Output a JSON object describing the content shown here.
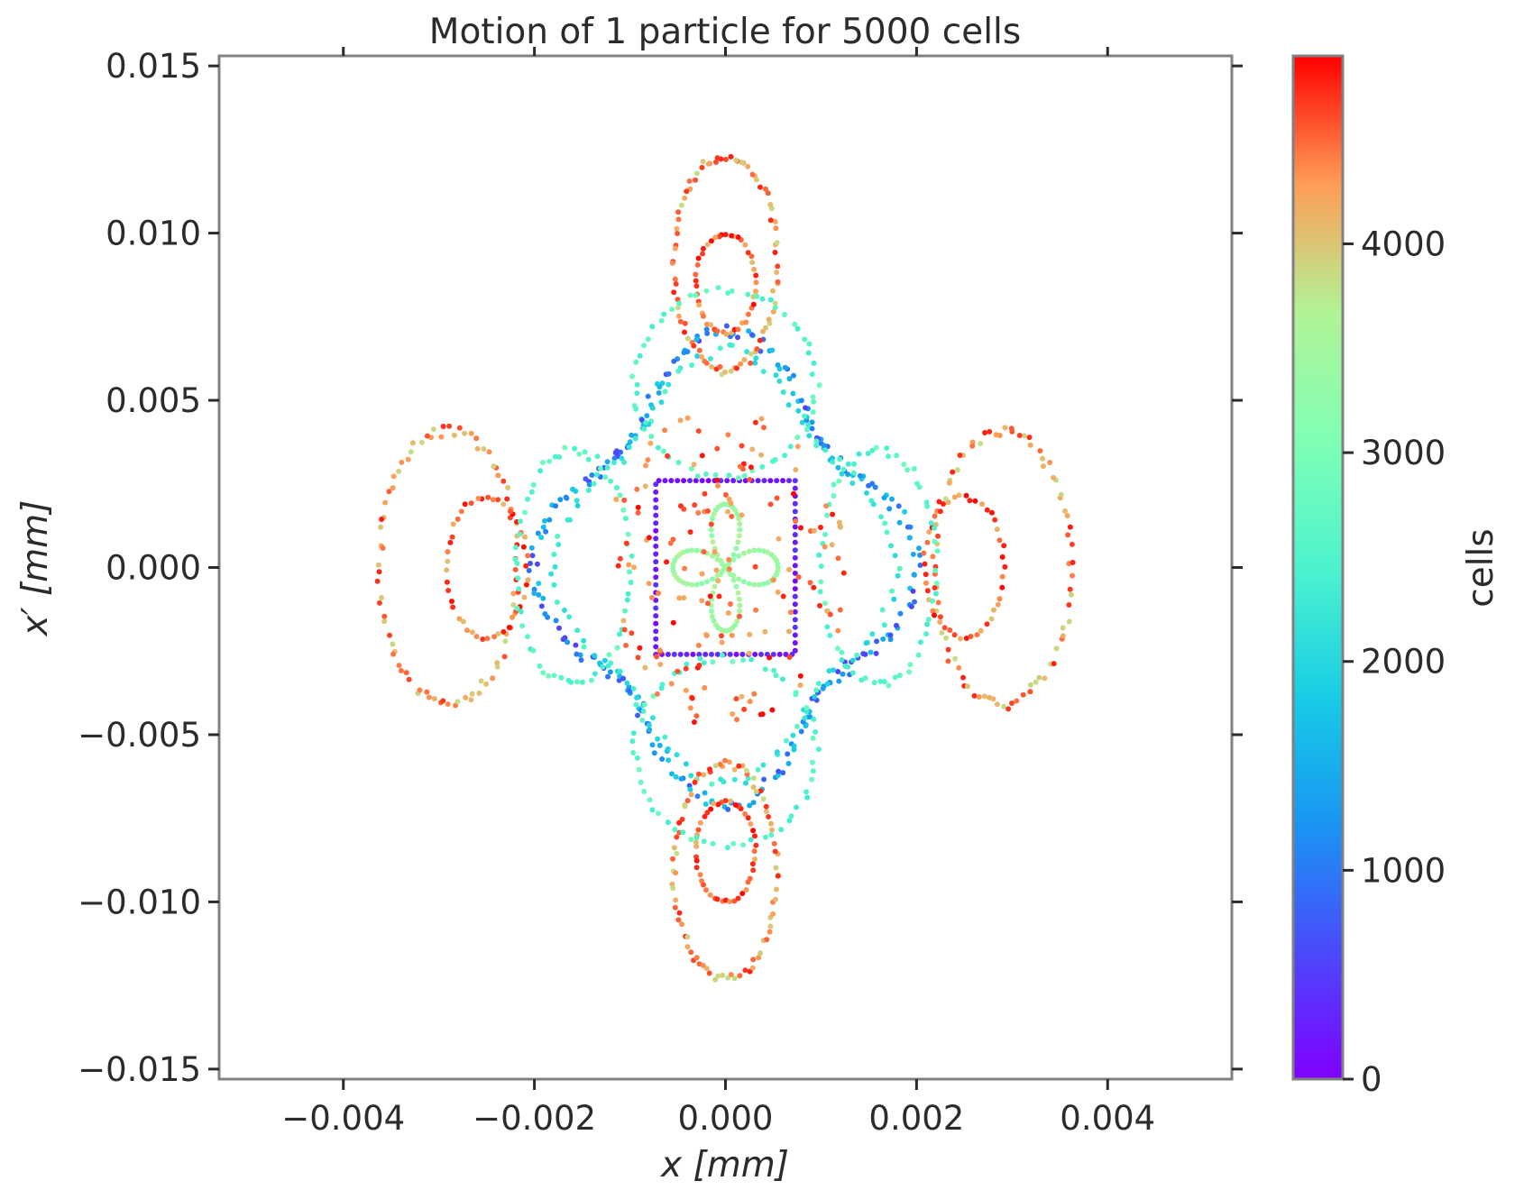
{
  "chart_data": {
    "type": "scatter",
    "title": "Motion of 1 particle for 5000 cells",
    "xlabel": "x [mm]",
    "ylabel": "x′ [mm]",
    "xlim": [
      -0.0053,
      0.0053
    ],
    "ylim": [
      -0.0153,
      0.0153
    ],
    "xticks": [
      -0.004,
      -0.002,
      0.0,
      0.002,
      0.004
    ],
    "xtick_labels": [
      "−0.004",
      "−0.002",
      "0.000",
      "0.002",
      "0.004"
    ],
    "yticks": [
      0.015,
      0.01,
      0.005,
      0.0,
      -0.005,
      -0.01,
      -0.015
    ],
    "ytick_labels": [
      "0.015",
      "0.010",
      "0.005",
      "0.000",
      "−0.005",
      "−0.010",
      "−0.015"
    ],
    "grid": false,
    "colorbar": {
      "label": "cells",
      "colormap": "rainbow",
      "range": [
        0,
        4900
      ],
      "ticks": [
        0,
        1000,
        2000,
        3000,
        4000
      ],
      "tick_labels": [
        "0",
        "1000",
        "2000",
        "3000",
        "4000"
      ]
    },
    "point_series": [
      {
        "shape": "square",
        "cx": 0.0,
        "cy": 0.0,
        "ax": 0.00073,
        "ay": 0.0026,
        "n": 90,
        "cells": [
          0,
          450
        ]
      },
      {
        "shape": "ring",
        "cx": 0.0,
        "cy": 0.0,
        "ax": 0.00173,
        "ay": 0.0061,
        "wobble": 0.16,
        "n": 240,
        "cells": [
          500,
          1900
        ]
      },
      {
        "shape": "ring",
        "cx": 0.0,
        "cy": 0.0,
        "ax": 0.0016,
        "ay": 0.0058,
        "wobble": 0.12,
        "n": 120,
        "cells": [
          1900,
          2600
        ]
      },
      {
        "shape": "rosette",
        "cx": 0.0,
        "cy": 0.0,
        "ax": 0.00055,
        "ay": 0.0019,
        "n": 110,
        "cells": [
          3200,
          3700
        ]
      },
      {
        "shape": "lobe",
        "cx": 0.0,
        "cy": 0.0091,
        "ax": 0.00054,
        "ay": 0.0032,
        "n": 85,
        "cells": [
          3800,
          4800
        ]
      },
      {
        "shape": "lobe",
        "cx": 0.0,
        "cy": -0.0091,
        "ax": 0.00054,
        "ay": 0.0032,
        "n": 85,
        "cells": [
          3800,
          4800
        ]
      },
      {
        "shape": "lobe",
        "cx": -0.0029,
        "cy": 0.0,
        "ax": 0.00072,
        "ay": 0.0041,
        "n": 85,
        "cells": [
          3800,
          4800
        ]
      },
      {
        "shape": "lobe",
        "cx": 0.0029,
        "cy": 0.0,
        "ax": 0.00072,
        "ay": 0.0041,
        "n": 85,
        "cells": [
          3800,
          4800
        ]
      },
      {
        "shape": "lobe",
        "cx": 0.0,
        "cy": 0.0085,
        "ax": 0.00031,
        "ay": 0.0015,
        "n": 45,
        "cells": [
          4000,
          4900
        ]
      },
      {
        "shape": "lobe",
        "cx": 0.0,
        "cy": -0.0085,
        "ax": 0.00031,
        "ay": 0.0015,
        "n": 45,
        "cells": [
          4000,
          4900
        ]
      },
      {
        "shape": "lobe",
        "cx": -0.0025,
        "cy": 0.0,
        "ax": 0.00042,
        "ay": 0.0021,
        "n": 45,
        "cells": [
          4000,
          4900
        ]
      },
      {
        "shape": "lobe",
        "cx": 0.0025,
        "cy": 0.0,
        "ax": 0.00042,
        "ay": 0.0021,
        "n": 45,
        "cells": [
          4000,
          4900
        ]
      },
      {
        "shape": "lobe",
        "cx": 0.0,
        "cy": 0.0055,
        "ax": 0.00095,
        "ay": 0.0028,
        "n": 60,
        "cells": [
          2300,
          2900
        ]
      },
      {
        "shape": "lobe",
        "cx": 0.0,
        "cy": -0.0055,
        "ax": 0.00095,
        "ay": 0.0028,
        "n": 60,
        "cells": [
          2300,
          2900
        ]
      },
      {
        "shape": "lobe",
        "cx": -0.0016,
        "cy": 0.0,
        "ax": 0.0006,
        "ay": 0.0035,
        "n": 60,
        "cells": [
          2300,
          2900
        ]
      },
      {
        "shape": "lobe",
        "cx": 0.0016,
        "cy": 0.0,
        "ax": 0.0006,
        "ay": 0.0035,
        "n": 60,
        "cells": [
          2300,
          2900
        ]
      },
      {
        "shape": "scatter",
        "cx": 0.0,
        "cy": 0.0,
        "ax": 0.0013,
        "ay": 0.0048,
        "n": 160,
        "cells": [
          4100,
          4900
        ]
      }
    ]
  }
}
